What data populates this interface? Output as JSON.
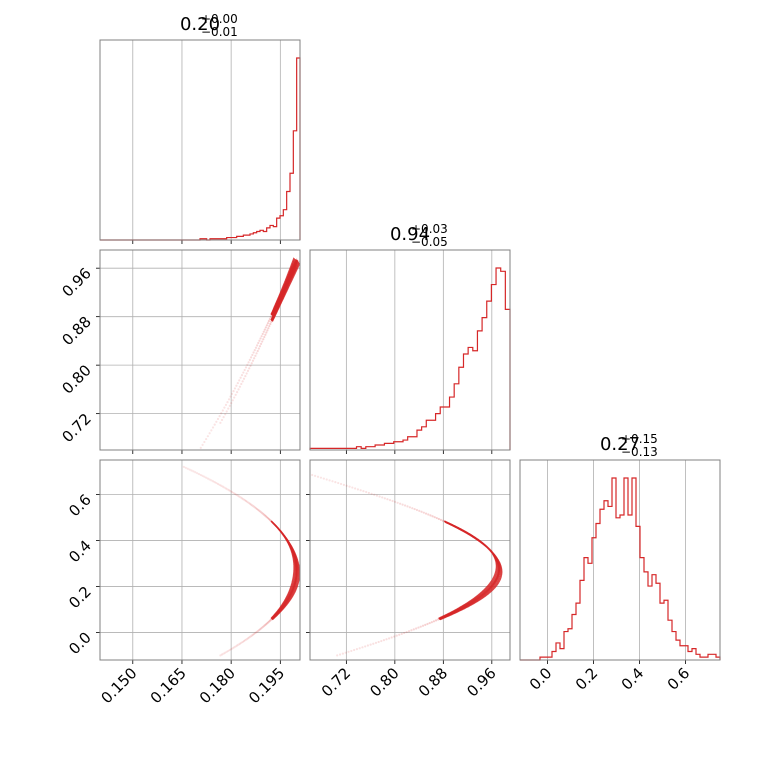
{
  "chart_data": {
    "type": "corner",
    "colors": {
      "main": "#d62728",
      "grid": "#b0b0b0",
      "frame": "#808080"
    },
    "params": [
      {
        "title_median": "0.20",
        "title_plus": "+0.00",
        "title_minus": "−0.01",
        "range": [
          0.14,
          0.201
        ],
        "ticks": [
          0.15,
          0.165,
          0.18,
          0.195
        ],
        "tick_labels": [
          "0.150",
          "0.165",
          "0.180",
          "0.195"
        ]
      },
      {
        "title_median": "0.94",
        "title_plus": "+0.03",
        "title_minus": "−0.05",
        "range": [
          0.66,
          0.99
        ],
        "ticks": [
          0.72,
          0.8,
          0.88,
          0.96
        ],
        "tick_labels": [
          "0.72",
          "0.80",
          "0.88",
          "0.96"
        ]
      },
      {
        "title_median": "0.27",
        "title_plus": "+0.15",
        "title_minus": "−0.13",
        "range": [
          -0.12,
          0.75
        ],
        "ticks": [
          0.0,
          0.2,
          0.4,
          0.6
        ],
        "tick_labels": [
          "0.0",
          "0.2",
          "0.4",
          "0.6"
        ]
      }
    ],
    "hist": [
      {
        "bin_range": [
          0.14,
          0.201
        ],
        "counts": [
          0,
          0,
          0,
          0,
          0,
          0,
          0,
          0,
          0,
          0,
          0,
          0,
          0,
          0,
          0,
          0,
          0,
          0,
          0,
          0,
          0,
          0,
          0,
          0,
          0,
          0,
          0,
          0,
          0,
          0,
          1,
          1,
          0,
          1,
          1,
          1,
          1,
          1,
          2,
          2,
          2,
          3,
          3,
          4,
          4,
          5,
          6,
          7,
          8,
          7,
          10,
          12,
          11,
          18,
          20,
          25,
          40,
          55,
          90,
          150
        ]
      },
      {
        "bin_range": [
          0.66,
          0.99
        ],
        "counts": [
          1,
          1,
          1,
          1,
          1,
          1,
          1,
          1,
          1,
          1,
          2,
          1,
          2,
          2,
          3,
          3,
          4,
          4,
          5,
          5,
          6,
          8,
          8,
          12,
          14,
          18,
          18,
          22,
          26,
          26,
          32,
          40,
          50,
          58,
          62,
          60,
          72,
          80,
          90,
          100,
          110,
          108,
          85
        ]
      },
      {
        "bin_range": [
          -0.12,
          0.75
        ],
        "counts": [
          0,
          0,
          0,
          0,
          0,
          1,
          1,
          1,
          3,
          6,
          4,
          10,
          11,
          16,
          20,
          28,
          36,
          34,
          43,
          48,
          53,
          56,
          54,
          64,
          50,
          51,
          64,
          51,
          64,
          47,
          36,
          31,
          26,
          30,
          27,
          20,
          21,
          14,
          10,
          7,
          5,
          5,
          3,
          4,
          2,
          1,
          1,
          2,
          2,
          1
        ]
      }
    ],
    "curve": {
      "t_range": [
        -0.1,
        0.72
      ],
      "x_peak": 0.2,
      "x_coef": 0.17,
      "t_peak": 0.27,
      "y_amp": 0.352,
      "y_width": 0.4
    }
  }
}
